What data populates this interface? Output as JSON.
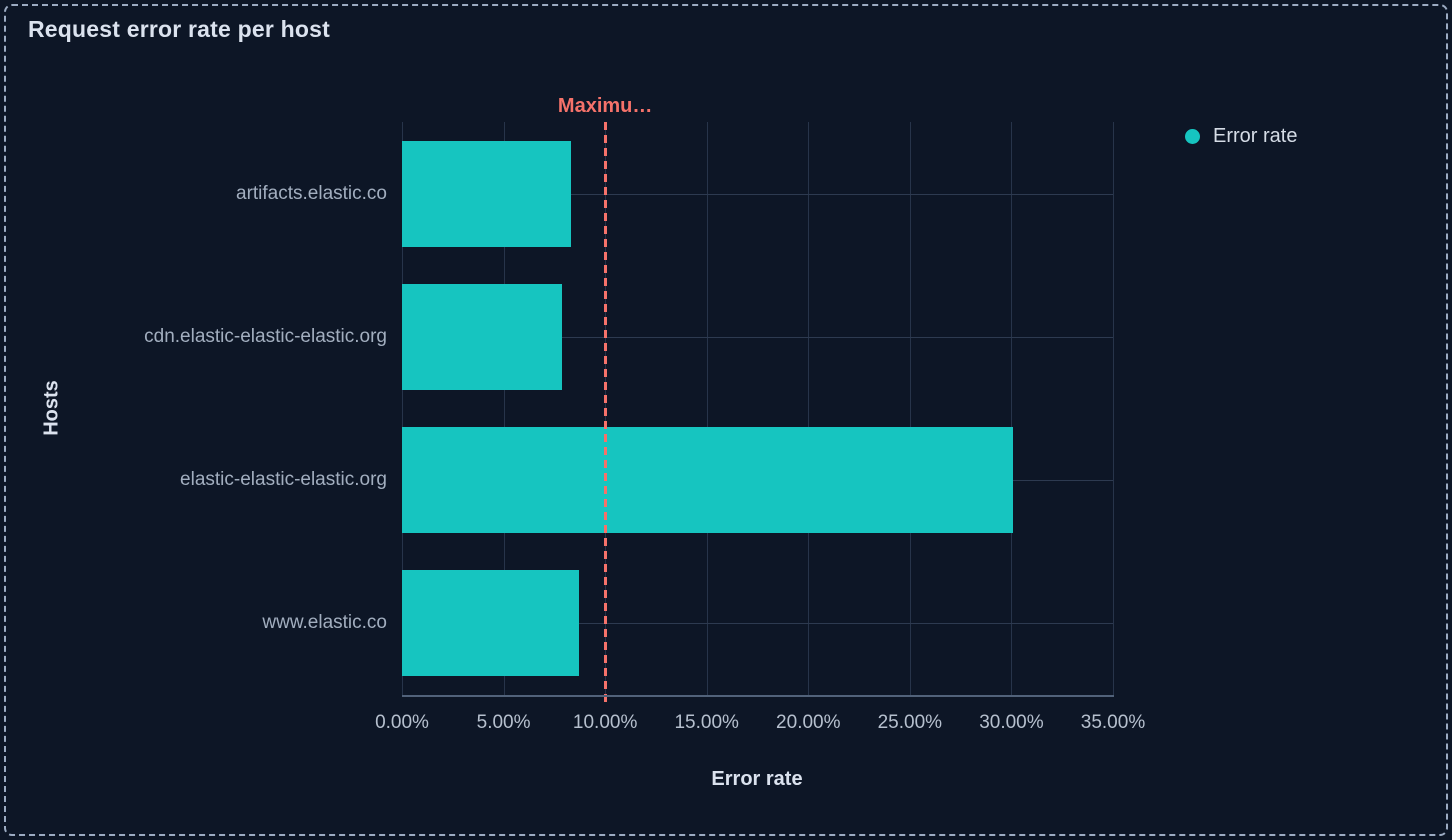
{
  "panel": {
    "title": "Request error rate per host"
  },
  "legend": {
    "items": [
      {
        "label": "Error rate",
        "color": "#16c5c0",
        "swatch": "circle"
      }
    ]
  },
  "chart_data": {
    "type": "bar",
    "orientation": "horizontal",
    "title": "Request error rate per host",
    "xlabel": "Error rate",
    "ylabel": "Hosts",
    "categories": [
      "artifacts.elastic.co",
      "cdn.elastic-elastic-elastic.org",
      "elastic-elastic-elastic.org",
      "www.elastic.co"
    ],
    "series": [
      {
        "name": "Error rate",
        "color": "#16c5c0",
        "values": [
          8.3,
          7.9,
          30.1,
          8.7
        ]
      }
    ],
    "unit": "%",
    "xlim": [
      0,
      35
    ],
    "x_tick_values": [
      0,
      5,
      10,
      15,
      20,
      25,
      30,
      35
    ],
    "x_ticks": [
      "0.00%",
      "5.00%",
      "10.00%",
      "15.00%",
      "20.00%",
      "25.00%",
      "30.00%",
      "35.00%"
    ],
    "grid": true,
    "legend_position": "right",
    "threshold": {
      "value": 10,
      "label": "Maximu…",
      "color": "#f5726a",
      "style": "dashed"
    }
  },
  "colors": {
    "background": "#0d1626",
    "bar": "#16c5c0",
    "threshold": "#f5726a",
    "panel_border": "#9cabc2",
    "axis_line": "#51627a",
    "grid_vertical": "#27344a",
    "grid_horizontal": "#2d3a50",
    "title_text": "#dbe2ee",
    "tick_text": "#b6c0ce",
    "category_text": "#a2aebf"
  }
}
